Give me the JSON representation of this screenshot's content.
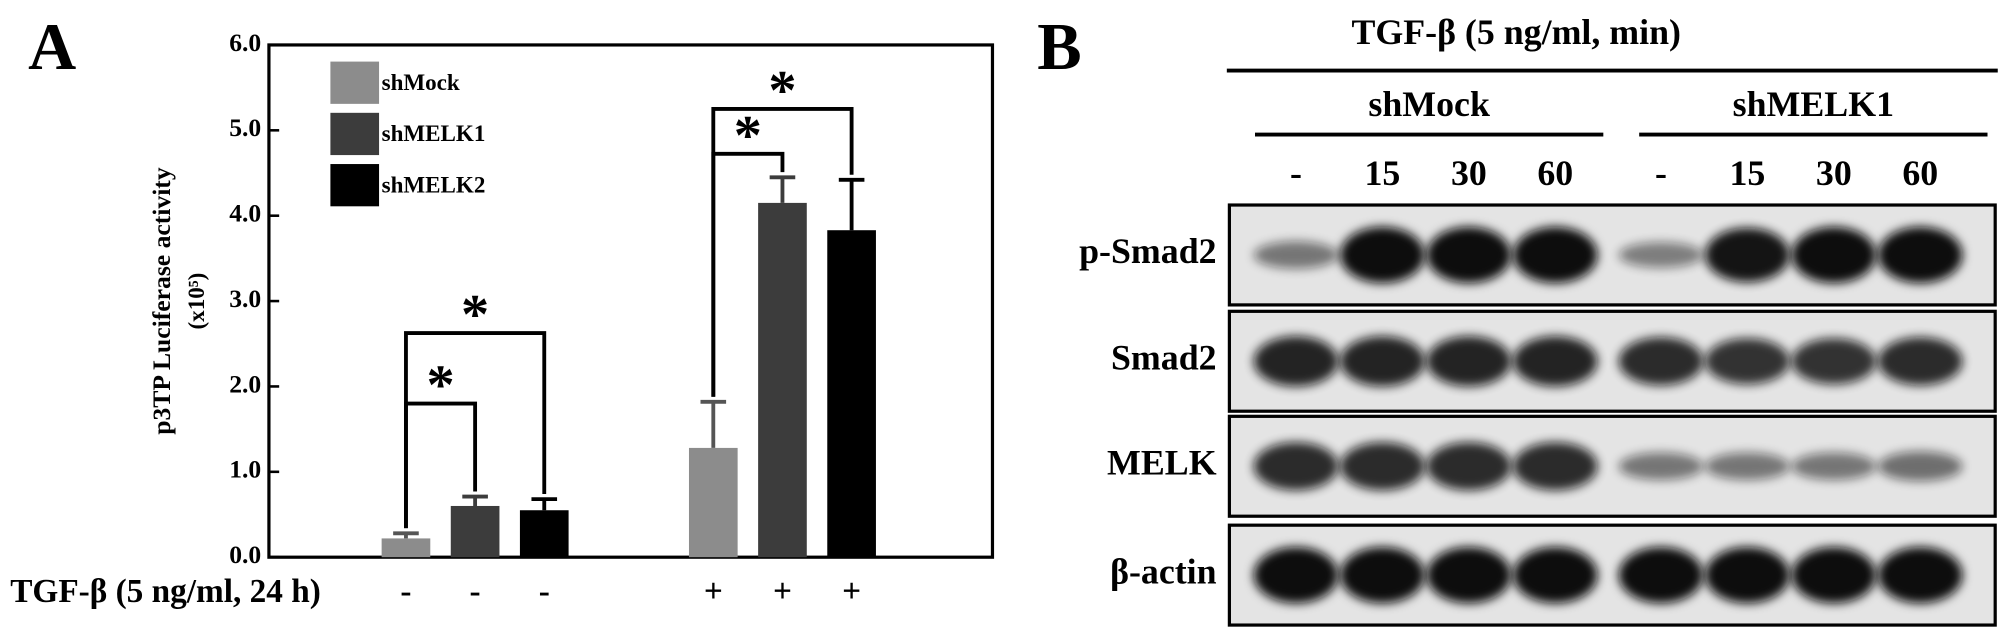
{
  "panels": {
    "left": "A",
    "right": "B"
  },
  "chart_data": {
    "type": "bar",
    "y_label": "p3TP Luciferase activity",
    "y_unit": "(x10⁵)",
    "x_label": "TGF-β (5 ng/ml, 24 h)",
    "categories": [
      "-",
      "+"
    ],
    "series": [
      {
        "name": "shMock",
        "color": "#8c8c8c",
        "values": [
          0.22,
          1.28
        ],
        "errors": [
          0.06,
          0.54
        ]
      },
      {
        "name": "shMELK1",
        "color": "#3c3c3c",
        "values": [
          0.6,
          4.15
        ],
        "errors": [
          0.11,
          0.3
        ]
      },
      {
        "name": "shMELK2",
        "color": "#000000",
        "values": [
          0.55,
          3.83
        ],
        "errors": [
          0.13,
          0.59
        ]
      }
    ],
    "ylim": [
      0,
      6
    ],
    "yticks": [
      {
        "value": 0,
        "label": "0.0"
      },
      {
        "value": 1,
        "label": "1.0"
      },
      {
        "value": 2,
        "label": "2.0"
      },
      {
        "value": 3,
        "label": "3.0"
      },
      {
        "value": 4,
        "label": "4.0"
      },
      {
        "value": 5,
        "label": "5.0"
      },
      {
        "value": 6,
        "label": "6.0"
      }
    ],
    "annotations": [
      "*",
      "*",
      "*",
      "*"
    ]
  },
  "blot": {
    "title": "TGF-β (5 ng/ml, min)",
    "groups": [
      {
        "name": "shMock",
        "lanes": [
          "-",
          "15",
          "30",
          "60"
        ]
      },
      {
        "name": "shMELK1",
        "lanes": [
          "-",
          "15",
          "30",
          "60"
        ]
      }
    ],
    "rows": [
      "p-Smad2",
      "Smad2",
      "MELK",
      "β-actin"
    ]
  }
}
